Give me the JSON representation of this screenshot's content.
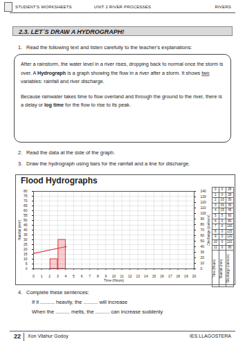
{
  "header": {
    "left": "STUDENT'S WORKSHEETS",
    "center": "UNIT 2 RIVER PROCESSES",
    "right": "RIVERS"
  },
  "section_title": "2.3. LET´S DRAW A HYDROGRAPH!",
  "steps": [
    {
      "number": "1.",
      "text": "Read the following text and listen carefully to the teacher's explanations:"
    },
    {
      "number": "2.",
      "text": "Read the data at the side of the graph."
    },
    {
      "number": "3.",
      "text": "Draw the hydrograph using bars for the rainfall and a line for discharge."
    },
    {
      "number": "4.",
      "text": "Complete these sentences:"
    }
  ],
  "text_box": {
    "paragraphs": [
      [
        {
          "text": "After a rainstorm, the water level in a river rises, dropping back to normal once the storm is over. A "
        },
        {
          "text": "Hydrograph",
          "style": "bold"
        },
        {
          "text": " is a graph showing the flow in a river after a storm. It shows "
        },
        {
          "text": "two",
          "style": "underline"
        },
        {
          "text": " variables: rainfall and river discharge."
        }
      ],
      [
        {
          "text": "Because rainwater takes time to flow overland and through the ground to the river, there is a delay or "
        },
        {
          "text": "log time",
          "style": "bold"
        },
        {
          "text": " for the flow to rise to its peak."
        }
      ]
    ]
  },
  "chart_data": {
    "type": "bar",
    "title": "Flood Hydrographs",
    "x_label": "Time (Hours)",
    "y_label": "Rainfall (mm)",
    "y2_label": "Discharge (cumecs)",
    "xlim": [
      0,
      20
    ],
    "xticks": [
      0,
      1,
      2,
      3,
      4,
      5,
      6,
      7,
      8,
      9,
      10,
      11,
      12,
      13,
      14,
      15,
      16,
      17,
      18,
      19,
      20
    ],
    "ylim": [
      0,
      80
    ],
    "yticks": [
      0,
      5,
      10,
      15,
      20,
      25,
      30,
      35,
      40,
      45,
      50,
      55,
      60,
      65,
      70,
      75,
      80
    ],
    "y2lim": [
      0,
      140
    ],
    "y2ticks": [
      0,
      10,
      20,
      30,
      40,
      50,
      60,
      70,
      80,
      90,
      100,
      110,
      120,
      130,
      140
    ],
    "grid": true,
    "series": [
      {
        "type": "bar",
        "color": "#e0393e",
        "x": [
          2,
          3
        ],
        "values": [
          10,
          30
        ]
      },
      {
        "type": "line",
        "axis": "y2",
        "color": "#e0393e",
        "x": [
          0,
          4
        ],
        "values": [
          28,
          40
        ]
      }
    ]
  },
  "data_table": {
    "headers": [
      "Time (Hours)",
      "Rainfall (mm)",
      "Discharge (cumecs)"
    ],
    "rows": [
      [
        0,
        0,
        28
      ],
      [
        1,
        0,
        28
      ],
      [
        2,
        10,
        30
      ],
      [
        3,
        30,
        35
      ],
      [
        4,
        15,
        45
      ],
      [
        5,
        5,
        60
      ],
      [
        6,
        0,
        80
      ],
      [
        7,
        0,
        100
      ],
      [
        8,
        0,
        115
      ],
      [
        9,
        0,
        120
      ],
      [
        10,
        0,
        110
      ],
      [
        11,
        0,
        95
      ]
    ]
  },
  "sentences": [
    "If it .......... heavily, the .......... will increase",
    "When the .......... melts, the .......... can increase suddenly"
  ],
  "footer": {
    "page": "22",
    "author": "Xon Vilahur Godoy",
    "school": "IES LLAGOSTERA"
  }
}
